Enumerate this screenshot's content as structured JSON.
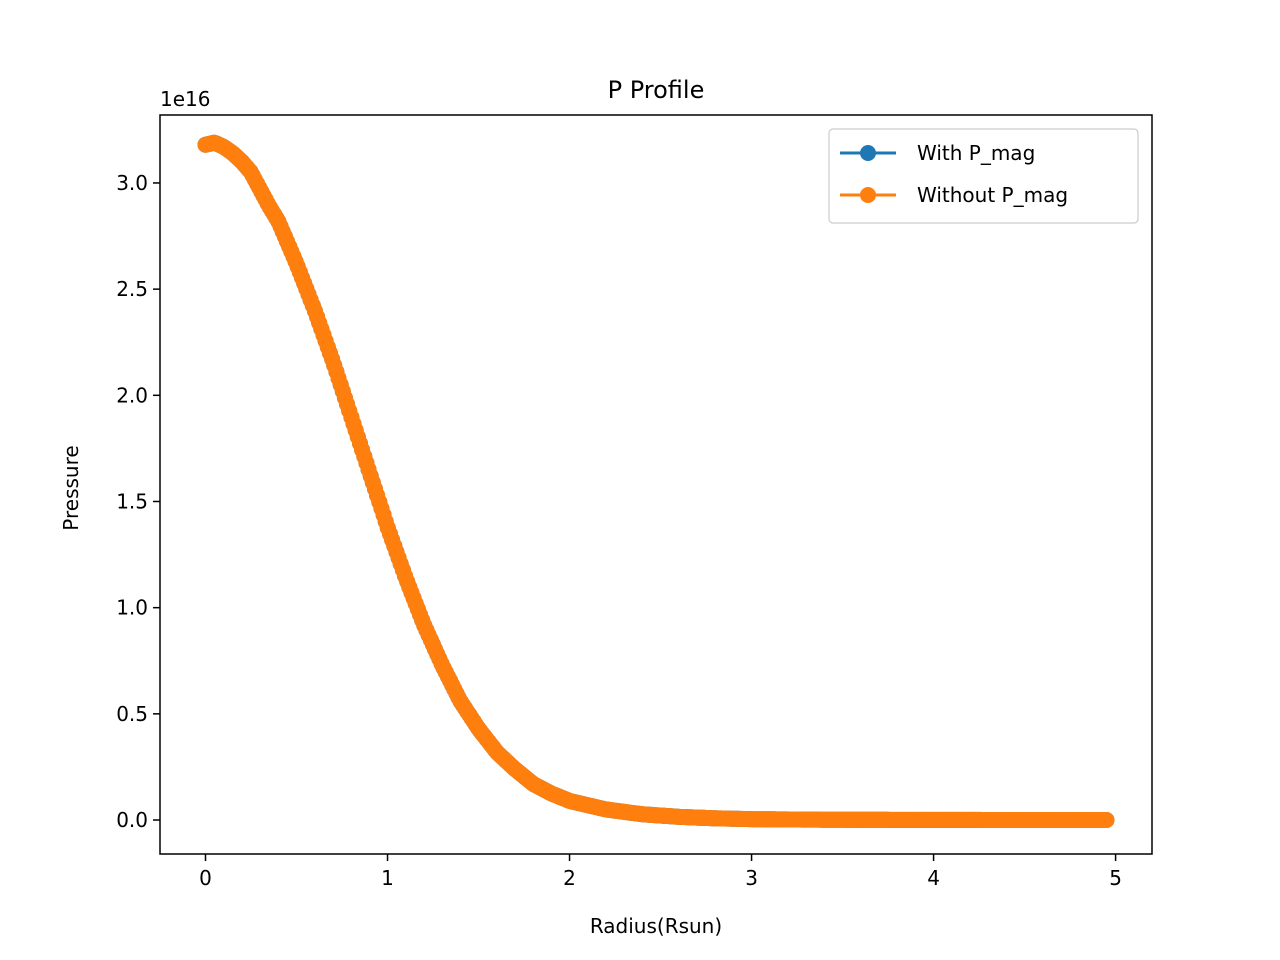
{
  "chart_data": {
    "type": "line",
    "title": "P Profile",
    "xlabel": "Radius(Rsun)",
    "ylabel": "Pressure",
    "y_offset_label": "1e16",
    "xlim": [
      -0.25,
      5.2
    ],
    "ylim": [
      -0.16,
      3.32
    ],
    "y_scale_note": "values in units of 1e16",
    "x_ticks": [
      0,
      1,
      2,
      3,
      4,
      5
    ],
    "x_tick_labels": [
      "0",
      "1",
      "2",
      "3",
      "4",
      "5"
    ],
    "y_ticks": [
      0.0,
      0.5,
      1.0,
      1.5,
      2.0,
      2.5,
      3.0
    ],
    "y_tick_labels": [
      "0.0",
      "0.5",
      "1.0",
      "1.5",
      "2.0",
      "2.5",
      "3.0"
    ],
    "grid": false,
    "legend_position": "top-right",
    "legend": [
      "With P_mag",
      "Without P_mag"
    ],
    "series": [
      {
        "name": "With P_mag",
        "color": "#1f77b4",
        "marker": "circle",
        "x": [
          0.0,
          0.05,
          0.1,
          0.15,
          0.2,
          0.25,
          0.3,
          0.35,
          0.4,
          0.45,
          0.5,
          0.6,
          0.7,
          0.8,
          0.9,
          1.0,
          1.1,
          1.2,
          1.3,
          1.4,
          1.5,
          1.6,
          1.7,
          1.8,
          1.9,
          2.0,
          2.2,
          2.4,
          2.6,
          2.8,
          3.0,
          3.3,
          3.6,
          4.0,
          4.5,
          4.95
        ],
        "y": [
          3.18,
          3.19,
          3.17,
          3.14,
          3.1,
          3.05,
          2.97,
          2.89,
          2.82,
          2.72,
          2.62,
          2.4,
          2.16,
          1.9,
          1.64,
          1.38,
          1.14,
          0.92,
          0.73,
          0.56,
          0.43,
          0.32,
          0.24,
          0.17,
          0.125,
          0.09,
          0.05,
          0.027,
          0.015,
          0.008,
          0.004,
          0.002,
          0.001,
          0.0005,
          0.0002,
          0.0001
        ]
      },
      {
        "name": "Without P_mag",
        "color": "#ff7f0e",
        "marker": "circle",
        "x": [
          0.0,
          0.05,
          0.1,
          0.15,
          0.2,
          0.25,
          0.3,
          0.35,
          0.4,
          0.45,
          0.5,
          0.6,
          0.7,
          0.8,
          0.9,
          1.0,
          1.1,
          1.2,
          1.3,
          1.4,
          1.5,
          1.6,
          1.7,
          1.8,
          1.9,
          2.0,
          2.2,
          2.4,
          2.6,
          2.8,
          3.0,
          3.3,
          3.6,
          4.0,
          4.5,
          4.95
        ],
        "y": [
          3.18,
          3.19,
          3.17,
          3.14,
          3.1,
          3.05,
          2.97,
          2.89,
          2.82,
          2.72,
          2.62,
          2.4,
          2.16,
          1.9,
          1.64,
          1.38,
          1.14,
          0.92,
          0.73,
          0.56,
          0.43,
          0.32,
          0.24,
          0.17,
          0.125,
          0.09,
          0.05,
          0.027,
          0.015,
          0.008,
          0.004,
          0.002,
          0.001,
          0.0005,
          0.0002,
          0.0001
        ]
      }
    ]
  }
}
